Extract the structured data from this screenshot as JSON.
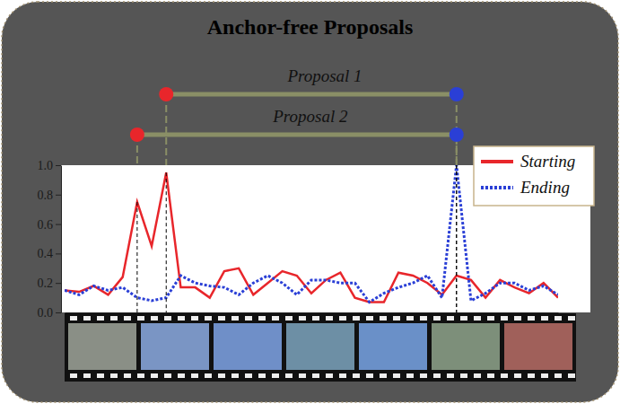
{
  "chart_data": {
    "type": "line",
    "title": "Anchor-free Proposals",
    "x": [
      0,
      1,
      2,
      3,
      4,
      5,
      6,
      7,
      8,
      9,
      10,
      11,
      12,
      13,
      14,
      15,
      16,
      17,
      18,
      19,
      20,
      21,
      22,
      23,
      24,
      25,
      26,
      27,
      28,
      29,
      30,
      31,
      32,
      33,
      34
    ],
    "xlim": [
      0,
      34
    ],
    "ylim": [
      0,
      1.0
    ],
    "yticks": [
      {
        "value": 0,
        "label": "0.0"
      },
      {
        "value": 0.2,
        "label": "0.2"
      },
      {
        "value": 0.4,
        "label": "0.4"
      },
      {
        "value": 0.6,
        "label": "0.6"
      },
      {
        "value": 0.8,
        "label": "0.8"
      },
      {
        "value": 1.0,
        "label": "1.0"
      }
    ],
    "tick_labels": "y",
    "grid": false,
    "legend": "upper right",
    "series": [
      {
        "name": "Starting",
        "color": "#e8262b",
        "line_style": "solid",
        "values": [
          0.15,
          0.14,
          0.18,
          0.12,
          0.24,
          0.75,
          0.45,
          0.95,
          0.17,
          0.17,
          0.1,
          0.28,
          0.3,
          0.12,
          0.2,
          0.28,
          0.25,
          0.13,
          0.22,
          0.27,
          0.1,
          0.07,
          0.07,
          0.27,
          0.25,
          0.2,
          0.12,
          0.25,
          0.22,
          0.1,
          0.22,
          0.17,
          0.13,
          0.2,
          0.1
        ]
      },
      {
        "name": "Ending",
        "color": "#2a3fd6",
        "line_style": "dotted",
        "values": [
          0.15,
          0.12,
          0.18,
          0.15,
          0.17,
          0.1,
          0.08,
          0.1,
          0.25,
          0.2,
          0.18,
          0.17,
          0.12,
          0.2,
          0.25,
          0.2,
          0.12,
          0.22,
          0.22,
          0.2,
          0.2,
          0.07,
          0.13,
          0.17,
          0.2,
          0.25,
          0.1,
          1.0,
          0.08,
          0.13,
          0.2,
          0.2,
          0.15,
          0.18,
          0.12
        ]
      }
    ],
    "annotations": [
      {
        "text": "Proposal 1",
        "start": 7,
        "end": 27
      },
      {
        "text": "Proposal 2",
        "start": 5,
        "end": 27
      }
    ]
  }
}
